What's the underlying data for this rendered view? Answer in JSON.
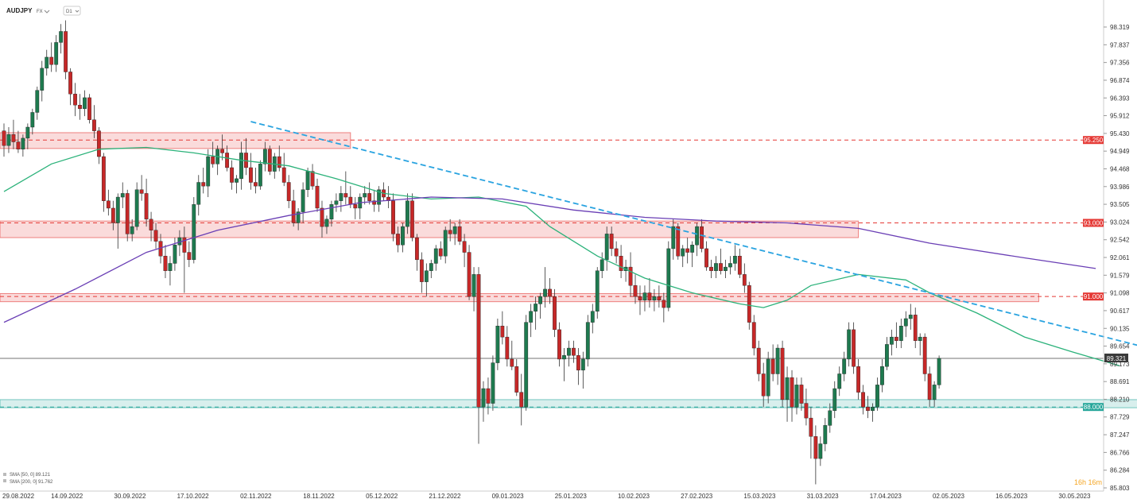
{
  "header": {
    "symbol": "AUDJPY",
    "badge": "FX",
    "timeframe": "D1"
  },
  "legend": {
    "sma50": "SMA [50, 0] 89.121",
    "sma200": "SMA [200, 0] 91.762"
  },
  "countdown": "16h 16m",
  "chart_data": {
    "type": "candlestick",
    "ylim": [
      85.83,
      98.8
    ],
    "y_ticks": [
      "98.319",
      "97.837",
      "97.356",
      "96.874",
      "96.393",
      "95.912",
      "95.430",
      "94.949",
      "94.468",
      "93.986",
      "93.505",
      "93.024",
      "92.542",
      "92.061",
      "91.579",
      "91.098",
      "90.617",
      "90.135",
      "89.654",
      "89.173",
      "88.691",
      "88.210",
      "87.729",
      "87.247",
      "86.766",
      "86.284",
      "85.803"
    ],
    "x_labels": [
      "29.08.2022",
      "14.09.2022",
      "30.09.2022",
      "17.10.2022",
      "02.11.2022",
      "18.11.2022",
      "05.12.2022",
      "21.12.2022",
      "09.01.2023",
      "25.01.2023",
      "10.02.2023",
      "27.02.2023",
      "15.03.2023",
      "31.03.2023",
      "17.04.2023",
      "02.05.2023",
      "16.05.2023",
      "30.05.2023"
    ],
    "current_price": {
      "value": 89.321,
      "label": "89.321"
    },
    "levels": [
      {
        "value": 95.25,
        "label": "95.250",
        "color": "#e53935"
      },
      {
        "value": 93.0,
        "label": "93.000",
        "color": "#e53935"
      },
      {
        "value": 91.0,
        "label": "91.000",
        "color": "#e53935"
      },
      {
        "value": 88.0,
        "label": "88.000",
        "color": "#26a69a"
      }
    ],
    "zones": [
      {
        "from_bar": 0,
        "to_bar": 73,
        "low": 95.02,
        "high": 95.45,
        "color": "#e53935"
      },
      {
        "from_bar": 0,
        "to_bar": 180,
        "low": 92.6,
        "high": 93.05,
        "color": "#e53935"
      },
      {
        "from_bar": 0,
        "to_bar": 218,
        "low": 90.86,
        "high": 91.08,
        "color": "#e53935"
      },
      {
        "from_bar": 0,
        "to_bar": 240,
        "low": 87.98,
        "high": 88.2,
        "color": "#26a69a"
      }
    ],
    "trendline": {
      "start": [
        52,
        95.75
      ],
      "end": [
        255,
        89.15
      ],
      "color": "#29a3e0"
    },
    "sma50": [
      [
        0,
        93.85
      ],
      [
        10,
        94.6
      ],
      [
        20,
        95.0
      ],
      [
        30,
        95.05
      ],
      [
        40,
        94.9
      ],
      [
        50,
        94.7
      ],
      [
        60,
        94.55
      ],
      [
        70,
        94.2
      ],
      [
        80,
        93.8
      ],
      [
        90,
        93.65
      ],
      [
        100,
        93.7
      ],
      [
        110,
        93.45
      ],
      [
        115,
        92.9
      ],
      [
        125,
        92.1
      ],
      [
        135,
        91.5
      ],
      [
        145,
        91.1
      ],
      [
        155,
        90.8
      ],
      [
        160,
        90.7
      ],
      [
        165,
        90.9
      ],
      [
        170,
        91.3
      ],
      [
        180,
        91.6
      ],
      [
        190,
        91.45
      ],
      [
        195,
        91.1
      ],
      [
        205,
        90.55
      ],
      [
        215,
        89.9
      ],
      [
        225,
        89.5
      ],
      [
        235,
        89.12
      ]
    ],
    "sma200": [
      [
        0,
        90.3
      ],
      [
        15,
        91.2
      ],
      [
        30,
        92.2
      ],
      [
        45,
        92.8
      ],
      [
        60,
        93.2
      ],
      [
        75,
        93.55
      ],
      [
        90,
        93.7
      ],
      [
        105,
        93.65
      ],
      [
        120,
        93.35
      ],
      [
        135,
        93.15
      ],
      [
        150,
        93.05
      ],
      [
        165,
        93.0
      ],
      [
        180,
        92.85
      ],
      [
        195,
        92.45
      ],
      [
        215,
        92.05
      ],
      [
        230,
        91.76
      ]
    ],
    "candles": [
      [
        95.5,
        95.7,
        94.8,
        95.1
      ],
      [
        95.1,
        95.6,
        94.9,
        95.4
      ],
      [
        95.4,
        95.8,
        95.0,
        95.2
      ],
      [
        95.2,
        95.5,
        94.9,
        95.0
      ],
      [
        95.0,
        95.4,
        94.8,
        95.3
      ],
      [
        95.3,
        95.7,
        95.0,
        95.6
      ],
      [
        95.6,
        96.1,
        95.4,
        96.0
      ],
      [
        96.0,
        96.7,
        95.8,
        96.6
      ],
      [
        96.6,
        97.4,
        96.3,
        97.2
      ],
      [
        97.2,
        97.7,
        97.0,
        97.5
      ],
      [
        97.5,
        97.9,
        97.1,
        97.3
      ],
      [
        97.3,
        98.1,
        97.1,
        97.9
      ],
      [
        97.9,
        98.4,
        97.6,
        98.2
      ],
      [
        98.2,
        98.5,
        96.9,
        97.1
      ],
      [
        97.1,
        97.2,
        96.2,
        96.5
      ],
      [
        96.5,
        96.8,
        95.9,
        96.2
      ],
      [
        96.2,
        96.5,
        95.8,
        96.1
      ],
      [
        96.1,
        96.6,
        95.9,
        96.4
      ],
      [
        96.4,
        96.5,
        95.7,
        95.8
      ],
      [
        95.8,
        96.2,
        95.3,
        95.5
      ],
      [
        95.5,
        95.6,
        94.6,
        94.8
      ],
      [
        94.8,
        94.9,
        93.3,
        93.6
      ],
      [
        93.6,
        93.9,
        93.2,
        93.4
      ],
      [
        93.4,
        93.6,
        92.8,
        93.0
      ],
      [
        93.0,
        93.8,
        92.3,
        93.7
      ],
      [
        93.7,
        94.1,
        93.4,
        93.8
      ],
      [
        93.8,
        93.9,
        92.5,
        92.7
      ],
      [
        92.7,
        93.1,
        92.5,
        92.9
      ],
      [
        92.9,
        94.1,
        92.8,
        93.9
      ],
      [
        93.9,
        94.3,
        93.6,
        93.8
      ],
      [
        93.8,
        94.2,
        92.9,
        93.1
      ],
      [
        93.1,
        93.3,
        92.5,
        92.8
      ],
      [
        92.8,
        93.0,
        92.3,
        92.5
      ],
      [
        92.5,
        92.7,
        91.9,
        92.1
      ],
      [
        92.1,
        92.4,
        91.5,
        91.7
      ],
      [
        91.7,
        92.1,
        91.3,
        91.9
      ],
      [
        91.9,
        92.6,
        91.7,
        92.4
      ],
      [
        92.4,
        92.8,
        92.1,
        92.6
      ],
      [
        92.6,
        92.9,
        91.1,
        92.2
      ],
      [
        92.2,
        92.5,
        91.8,
        92.0
      ],
      [
        92.0,
        93.7,
        91.9,
        93.5
      ],
      [
        93.5,
        94.3,
        93.2,
        94.1
      ],
      [
        94.1,
        94.5,
        93.8,
        94.0
      ],
      [
        94.0,
        95.0,
        93.7,
        94.8
      ],
      [
        94.8,
        95.2,
        94.5,
        94.6
      ],
      [
        94.6,
        95.1,
        94.3,
        95.0
      ],
      [
        95.0,
        95.4,
        94.7,
        94.9
      ],
      [
        94.9,
        95.1,
        94.4,
        94.5
      ],
      [
        94.5,
        94.7,
        93.9,
        94.1
      ],
      [
        94.1,
        94.3,
        93.8,
        94.2
      ],
      [
        94.2,
        95.2,
        93.9,
        94.9
      ],
      [
        94.9,
        95.3,
        94.3,
        94.5
      ],
      [
        94.5,
        94.9,
        93.9,
        94.1
      ],
      [
        94.1,
        94.5,
        93.8,
        94.0
      ],
      [
        94.0,
        94.7,
        93.9,
        94.6
      ],
      [
        94.6,
        95.2,
        94.4,
        95.0
      ],
      [
        95.0,
        95.1,
        94.3,
        94.4
      ],
      [
        94.4,
        94.9,
        94.2,
        94.8
      ],
      [
        94.8,
        95.1,
        94.4,
        94.5
      ],
      [
        94.5,
        94.9,
        94.0,
        94.1
      ],
      [
        94.1,
        94.3,
        93.4,
        93.6
      ],
      [
        93.6,
        93.9,
        92.9,
        93.0
      ],
      [
        93.0,
        93.4,
        92.8,
        93.3
      ],
      [
        93.3,
        94.1,
        93.0,
        93.9
      ],
      [
        93.9,
        94.5,
        93.7,
        94.4
      ],
      [
        94.4,
        94.6,
        93.9,
        94.0
      ],
      [
        94.0,
        94.2,
        93.3,
        93.4
      ],
      [
        93.4,
        93.6,
        92.6,
        92.9
      ],
      [
        92.9,
        93.2,
        92.7,
        93.1
      ],
      [
        93.1,
        93.6,
        92.9,
        93.5
      ],
      [
        93.5,
        93.8,
        93.3,
        93.6
      ],
      [
        93.6,
        94.0,
        93.3,
        93.8
      ],
      [
        93.8,
        94.4,
        93.5,
        93.7
      ],
      [
        93.7,
        94.0,
        93.4,
        93.5
      ],
      [
        93.5,
        93.7,
        93.1,
        93.4
      ],
      [
        93.4,
        93.8,
        93.1,
        93.7
      ],
      [
        93.7,
        94.0,
        93.5,
        93.8
      ],
      [
        93.8,
        94.1,
        93.5,
        93.6
      ],
      [
        93.6,
        93.9,
        93.3,
        93.5
      ],
      [
        93.5,
        94.0,
        93.3,
        93.9
      ],
      [
        93.9,
        94.1,
        93.6,
        93.7
      ],
      [
        93.7,
        94.0,
        93.4,
        93.6
      ],
      [
        93.6,
        93.8,
        92.5,
        92.7
      ],
      [
        92.7,
        92.9,
        92.2,
        92.4
      ],
      [
        92.4,
        93.0,
        92.2,
        92.9
      ],
      [
        92.9,
        93.8,
        92.7,
        93.6
      ],
      [
        93.6,
        93.8,
        92.5,
        92.6
      ],
      [
        92.6,
        92.7,
        91.7,
        92.0
      ],
      [
        92.0,
        92.2,
        91.1,
        91.4
      ],
      [
        91.4,
        91.9,
        91.0,
        91.7
      ],
      [
        91.7,
        92.0,
        91.5,
        91.9
      ],
      [
        91.9,
        92.4,
        91.7,
        92.3
      ],
      [
        92.3,
        92.5,
        92.0,
        92.1
      ],
      [
        92.1,
        92.9,
        91.9,
        92.8
      ],
      [
        92.8,
        93.1,
        92.5,
        92.7
      ],
      [
        92.7,
        93.0,
        92.4,
        92.9
      ],
      [
        92.9,
        93.1,
        92.4,
        92.5
      ],
      [
        92.5,
        92.7,
        91.8,
        92.2
      ],
      [
        92.2,
        92.4,
        90.9,
        91.0
      ],
      [
        91.0,
        91.8,
        90.6,
        91.6
      ],
      [
        91.6,
        91.8,
        87.0,
        88.0
      ],
      [
        88.0,
        88.7,
        87.6,
        88.5
      ],
      [
        88.5,
        88.8,
        87.8,
        88.1
      ],
      [
        88.1,
        89.4,
        87.9,
        89.2
      ],
      [
        89.2,
        90.4,
        89.0,
        90.2
      ],
      [
        90.2,
        90.6,
        89.7,
        89.9
      ],
      [
        89.9,
        90.2,
        89.1,
        89.3
      ],
      [
        89.3,
        89.8,
        89.0,
        89.1
      ],
      [
        89.1,
        89.3,
        88.3,
        88.4
      ],
      [
        88.4,
        88.9,
        87.5,
        88.0
      ],
      [
        88.0,
        90.5,
        87.9,
        90.3
      ],
      [
        90.3,
        90.8,
        89.9,
        90.6
      ],
      [
        90.6,
        91.0,
        90.1,
        90.8
      ],
      [
        90.8,
        91.1,
        90.4,
        91.0
      ],
      [
        91.0,
        91.8,
        90.7,
        91.2
      ],
      [
        91.2,
        91.5,
        90.8,
        91.0
      ],
      [
        91.0,
        91.2,
        89.9,
        90.1
      ],
      [
        90.1,
        90.3,
        89.1,
        89.3
      ],
      [
        89.3,
        89.6,
        88.7,
        89.4
      ],
      [
        89.4,
        89.8,
        89.1,
        89.6
      ],
      [
        89.6,
        89.8,
        89.2,
        89.4
      ],
      [
        89.4,
        89.6,
        88.6,
        89.0
      ],
      [
        89.0,
        89.5,
        88.5,
        89.3
      ],
      [
        89.3,
        90.5,
        89.1,
        90.3
      ],
      [
        90.3,
        90.8,
        90.0,
        90.6
      ],
      [
        90.6,
        91.8,
        90.4,
        91.7
      ],
      [
        91.7,
        92.2,
        91.5,
        92.0
      ],
      [
        92.0,
        92.9,
        91.7,
        92.7
      ],
      [
        92.7,
        92.9,
        92.1,
        92.3
      ],
      [
        92.3,
        92.5,
        91.9,
        92.1
      ],
      [
        92.1,
        92.4,
        91.5,
        91.7
      ],
      [
        91.7,
        92.0,
        91.4,
        91.8
      ],
      [
        91.8,
        92.2,
        91.0,
        91.3
      ],
      [
        91.3,
        91.6,
        90.8,
        91.0
      ],
      [
        91.0,
        91.3,
        90.5,
        90.9
      ],
      [
        90.9,
        91.3,
        90.6,
        91.1
      ],
      [
        91.1,
        91.5,
        90.7,
        90.9
      ],
      [
        90.9,
        91.2,
        90.6,
        91.0
      ],
      [
        91.0,
        91.3,
        90.7,
        90.9
      ],
      [
        90.9,
        91.1,
        90.3,
        90.7
      ],
      [
        90.7,
        92.5,
        90.6,
        92.3
      ],
      [
        92.3,
        93.1,
        92.0,
        92.9
      ],
      [
        92.9,
        93.0,
        92.0,
        92.1
      ],
      [
        92.1,
        92.4,
        91.8,
        92.3
      ],
      [
        92.3,
        92.6,
        91.9,
        92.2
      ],
      [
        92.2,
        92.5,
        91.8,
        92.4
      ],
      [
        92.4,
        93.0,
        92.1,
        92.9
      ],
      [
        92.9,
        93.1,
        92.2,
        92.3
      ],
      [
        92.3,
        92.5,
        91.7,
        91.8
      ],
      [
        91.8,
        92.0,
        91.5,
        91.7
      ],
      [
        91.7,
        92.1,
        91.5,
        91.9
      ],
      [
        91.9,
        92.3,
        91.6,
        91.7
      ],
      [
        91.7,
        92.0,
        91.5,
        91.8
      ],
      [
        91.8,
        92.1,
        91.6,
        91.9
      ],
      [
        91.9,
        92.4,
        91.7,
        92.1
      ],
      [
        92.1,
        92.3,
        91.5,
        91.6
      ],
      [
        91.6,
        91.9,
        91.1,
        91.3
      ],
      [
        91.3,
        91.4,
        90.1,
        90.3
      ],
      [
        90.3,
        90.5,
        89.4,
        89.6
      ],
      [
        89.6,
        89.8,
        88.7,
        88.9
      ],
      [
        88.9,
        89.2,
        88.0,
        88.3
      ],
      [
        88.3,
        89.5,
        88.1,
        89.3
      ],
      [
        89.3,
        89.7,
        88.7,
        88.9
      ],
      [
        88.9,
        89.7,
        88.6,
        89.6
      ],
      [
        89.6,
        89.8,
        88.0,
        88.2
      ],
      [
        88.2,
        89.1,
        87.6,
        88.8
      ],
      [
        88.8,
        89.0,
        87.6,
        88.0
      ],
      [
        88.0,
        88.8,
        87.8,
        88.6
      ],
      [
        88.6,
        88.8,
        87.9,
        88.1
      ],
      [
        88.1,
        88.5,
        87.5,
        87.7
      ],
      [
        87.7,
        88.0,
        86.6,
        87.2
      ],
      [
        87.2,
        87.5,
        85.9,
        86.6
      ],
      [
        86.6,
        87.2,
        86.4,
        87.0
      ],
      [
        87.0,
        87.7,
        86.8,
        87.5
      ],
      [
        87.5,
        88.1,
        87.3,
        87.9
      ],
      [
        87.9,
        88.7,
        87.7,
        88.5
      ],
      [
        88.5,
        89.1,
        88.3,
        88.9
      ],
      [
        88.9,
        89.5,
        88.7,
        89.3
      ],
      [
        89.3,
        90.3,
        89.1,
        90.1
      ],
      [
        90.1,
        90.3,
        88.9,
        89.1
      ],
      [
        89.1,
        89.3,
        88.2,
        88.4
      ],
      [
        88.4,
        88.6,
        87.8,
        88.0
      ],
      [
        88.0,
        88.3,
        87.7,
        87.9
      ],
      [
        87.9,
        88.1,
        87.6,
        88.0
      ],
      [
        88.0,
        88.8,
        87.9,
        88.6
      ],
      [
        88.6,
        89.3,
        88.4,
        89.1
      ],
      [
        89.1,
        89.9,
        89.0,
        89.7
      ],
      [
        89.7,
        90.1,
        89.4,
        89.9
      ],
      [
        89.9,
        90.3,
        89.6,
        89.8
      ],
      [
        89.8,
        90.4,
        89.6,
        90.2
      ],
      [
        90.2,
        90.6,
        89.9,
        90.4
      ],
      [
        90.4,
        90.8,
        90.1,
        90.5
      ],
      [
        90.5,
        90.7,
        89.6,
        89.8
      ],
      [
        89.8,
        90.0,
        89.4,
        89.9
      ],
      [
        89.9,
        90.0,
        88.7,
        88.9
      ],
      [
        88.9,
        89.1,
        88.0,
        88.2
      ],
      [
        88.2,
        88.7,
        88.0,
        88.6
      ],
      [
        88.6,
        89.4,
        88.5,
        89.321
      ]
    ]
  }
}
